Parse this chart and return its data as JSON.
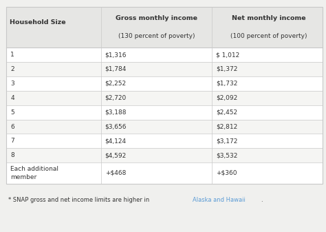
{
  "col_headers_line1": [
    "Household Size",
    "Gross monthly income",
    "Net monthly income"
  ],
  "col_headers_line2": [
    "",
    "(130 percent of poverty)",
    "(100 percent of poverty)"
  ],
  "rows": [
    [
      "1",
      "$1,316",
      "$ 1,012"
    ],
    [
      "2",
      "$1,784",
      "$1,372"
    ],
    [
      "3",
      "$2,252",
      "$1,732"
    ],
    [
      "4",
      "$2,720",
      "$2,092"
    ],
    [
      "5",
      "$3,188",
      "$2,452"
    ],
    [
      "6",
      "$3,656",
      "$2,812"
    ],
    [
      "7",
      "$4,124",
      "$3,172"
    ],
    [
      "8",
      "$4,592",
      "$3,532"
    ],
    [
      "Each additional\nmember",
      "+$468",
      "+$360"
    ]
  ],
  "footnote_plain": "* SNAP gross and net income limits are higher in ",
  "footnote_link": "Alaska and Hawaii",
  "footnote_end": ".",
  "bg_color": "#f0f0ee",
  "header_bg": "#e6e6e4",
  "border_color": "#c8c8c8",
  "text_color": "#333333",
  "link_color": "#5b9bd5",
  "figsize": [
    4.74,
    3.37
  ],
  "dpi": 100
}
